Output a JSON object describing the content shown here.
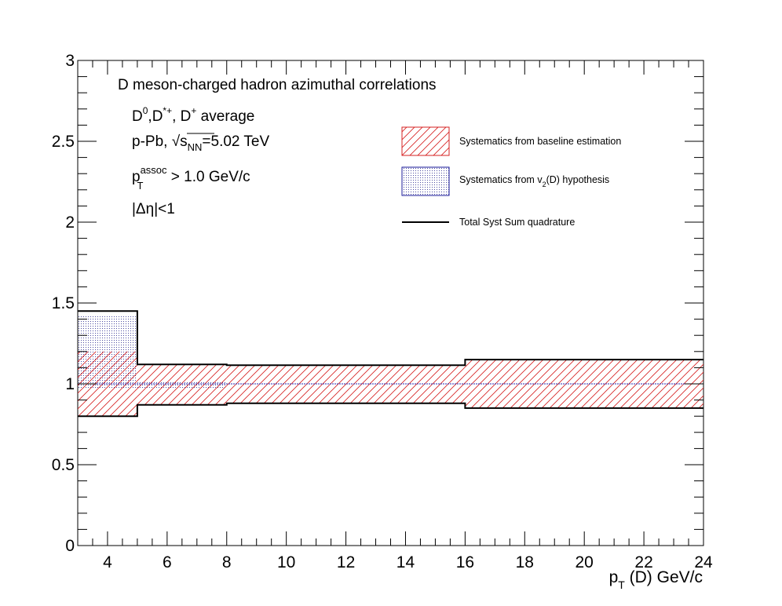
{
  "chart_data": {
    "type": "step-band",
    "xlim": [
      3,
      24
    ],
    "ylim": [
      0,
      3
    ],
    "x_ticks": [
      4,
      6,
      8,
      10,
      12,
      14,
      16,
      18,
      20,
      22,
      24
    ],
    "y_ticks": [
      "0",
      "0.5",
      "1",
      "1.5",
      "2",
      "2.5",
      "3"
    ],
    "y_tick_values": [
      0,
      0.5,
      1,
      1.5,
      2,
      2.5,
      3
    ],
    "xlabel": {
      "main": "p",
      "sub": "T",
      "rest": " (D) GeV/c"
    },
    "ylabel": "",
    "reference_line": 1,
    "annotations": {
      "line1": "D meson-charged hadron azimuthal correlations",
      "line2": {
        "d0": "D",
        "d0_sup": "0",
        "dstar": ",D",
        "dstar_sup": "*+",
        "dplus": ", D",
        "dplus_sup": "+",
        "rest": " average"
      },
      "line3": {
        "pre": "p-Pb, ",
        "sqrt": "√",
        "s": "s",
        "s_sub": "NN",
        "rest": "=5.02 TeV"
      },
      "line4": {
        "p": "p",
        "sup": "assoc",
        "sub": "T",
        "rest": " > 1.0 GeV/c"
      },
      "line5": "|Δη|<1"
    },
    "legend": [
      {
        "label": "Systematics from baseline estimation",
        "style": "hatch",
        "color": "#d62020"
      },
      {
        "label": {
          "pre": "Systematics from v",
          "sub": "2",
          "rest": "(D) hypothesis"
        },
        "style": "dots",
        "color": "#1a1a9a"
      },
      {
        "label": "Total Syst Sum quadrature",
        "style": "line",
        "color": "#000000"
      }
    ],
    "bins": [
      {
        "x_low": 3,
        "x_high": 5,
        "total_low": 0.8,
        "total_high": 1.45,
        "baseline_low": 0.8,
        "baseline_high": 1.2,
        "v2_low": 0.97,
        "v2_high": 1.42
      },
      {
        "x_low": 5,
        "x_high": 8,
        "total_low": 0.87,
        "total_high": 1.12,
        "baseline_low": 0.87,
        "baseline_high": 1.12,
        "v2_low": 0.97,
        "v2_high": 1.01
      },
      {
        "x_low": 8,
        "x_high": 16,
        "total_low": 0.88,
        "total_high": 1.115,
        "baseline_low": 0.88,
        "baseline_high": 1.115,
        "v2_low": 1.0,
        "v2_high": 1.0
      },
      {
        "x_low": 16,
        "x_high": 24,
        "total_low": 0.85,
        "total_high": 1.15,
        "baseline_low": 0.85,
        "baseline_high": 1.15,
        "v2_low": 1.0,
        "v2_high": 1.0
      }
    ]
  }
}
